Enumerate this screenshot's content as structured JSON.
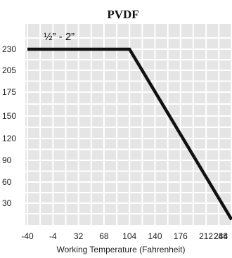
{
  "chart_data": {
    "type": "line",
    "title": "PVDF",
    "xlabel": "Working Temperature (Fahrenheit)",
    "ylabel": "",
    "x_ticks": [
      -40,
      -4,
      32,
      68,
      104,
      140,
      176,
      212,
      248,
      284
    ],
    "y_ticks": [
      30,
      60,
      90,
      120,
      150,
      175,
      205,
      230
    ],
    "grid": true,
    "series": [
      {
        "name": "",
        "x": [
          -40,
          104,
          248
        ],
        "y": [
          230,
          230,
          5
        ]
      }
    ],
    "annotation": "½” - 2”",
    "colors": {
      "plot_background": "#e5e5e5",
      "grid": "#ffffff",
      "line": "#111111"
    }
  }
}
